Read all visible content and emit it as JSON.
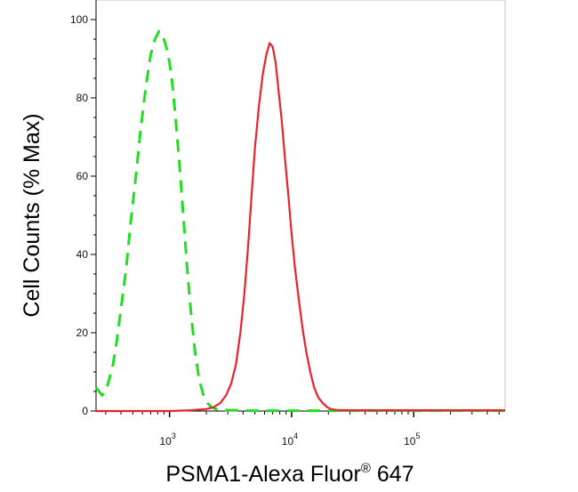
{
  "chart_data": {
    "type": "line",
    "title": "",
    "xlabel": "PSMA1-Alexa Fluor® 647",
    "ylabel": "Cell Counts (% Max)",
    "xscale": "log",
    "xlim": [
      250,
      560000
    ],
    "ylim": [
      0,
      100
    ],
    "y_ticks": [
      0,
      20,
      40,
      60,
      80,
      100
    ],
    "y_tick_labels": [
      "0",
      "20",
      "40",
      "60",
      "80",
      "100"
    ],
    "x_major_ticks": [
      1000,
      10000,
      100000
    ],
    "x_tick_labels": [
      {
        "base": "10",
        "exp": "3"
      },
      {
        "base": "10",
        "exp": "4"
      },
      {
        "base": "10",
        "exp": "5"
      }
    ],
    "grid": false,
    "legend": false,
    "series": [
      {
        "style": "dashed",
        "color": "#22dd22",
        "x": [
          250,
          265,
          280,
          300,
          320,
          345,
          370,
          400,
          440,
          480,
          530,
          580,
          640,
          700,
          760,
          820,
          880,
          940,
          1000,
          1060,
          1120,
          1200,
          1290,
          1390,
          1500,
          1620,
          1750,
          1900,
          2050,
          2200,
          2400,
          2700,
          3100,
          3600,
          4500,
          6000,
          10000,
          30000,
          100000,
          560000
        ],
        "values": [
          6,
          5,
          4,
          5,
          8,
          12,
          18,
          26,
          36,
          48,
          60,
          72,
          83,
          91,
          95,
          97,
          96,
          93,
          89,
          83,
          75,
          64,
          51,
          37,
          25,
          15,
          8,
          4,
          2,
          1,
          0.5,
          0.3,
          0.2,
          0.2,
          0.1,
          0.1,
          0.1,
          0.1,
          0.1,
          0.1
        ]
      },
      {
        "style": "solid",
        "color": "#e8232e",
        "x": [
          250,
          1000,
          1500,
          2000,
          2300,
          2600,
          2900,
          3200,
          3500,
          3800,
          4100,
          4400,
          4700,
          5000,
          5400,
          5800,
          6200,
          6600,
          7000,
          7400,
          7800,
          8300,
          8800,
          9400,
          10000,
          10700,
          11500,
          12300,
          13200,
          14200,
          15300,
          16500,
          18000,
          19500,
          21000,
          23000,
          26000,
          30000,
          50000,
          100000,
          560000
        ],
        "values": [
          0,
          0,
          0.2,
          0.5,
          1,
          2,
          4,
          7,
          12,
          20,
          30,
          42,
          55,
          67,
          78,
          86,
          91,
          94,
          93,
          89,
          82,
          74,
          65,
          55,
          45,
          36,
          28,
          21,
          15,
          10,
          6,
          3.5,
          2,
          1,
          0.5,
          0.3,
          0.2,
          0.2,
          0.2,
          0.2,
          0.2
        ]
      }
    ]
  }
}
